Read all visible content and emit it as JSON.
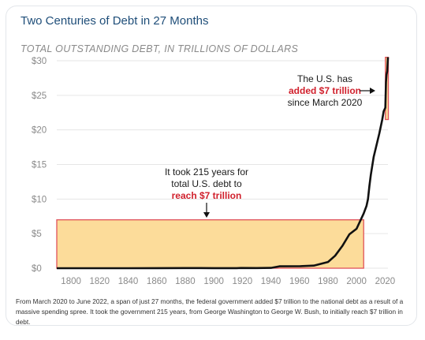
{
  "title": "Two Centuries of Debt in 27 Months",
  "subtitle": "TOTAL OUTSTANDING DEBT, IN TRILLIONS OF DOLLARS",
  "caption": "From March 2020 to June 2022, a span of just 27 months, the federal government added $7 trillion to the national debt as a result of a massive spending spree. It took the government 215 years, from George Washington to George W. Bush, to initially reach $7 trillion in debt.",
  "annotations": {
    "left": {
      "line1": "It took 215 years for",
      "line2": "total U.S. debt to",
      "line3": "reach $7 trillion"
    },
    "right": {
      "line1": "The U.S. has",
      "line2": "added $7 trillion",
      "line3": "since March 2020"
    }
  },
  "colors": {
    "highlight_fill": "#fcdc9a",
    "highlight_stroke": "#e0525a",
    "line": "#111111",
    "accent_red": "#d0202c",
    "title_blue": "#1f4e79"
  },
  "chart_data": {
    "type": "line",
    "title": "Two Centuries of Debt in 27 Months",
    "ylabel": "TOTAL OUTSTANDING DEBT, IN TRILLIONS OF DOLLARS",
    "xlabel": "",
    "xlim": [
      1790,
      2022
    ],
    "ylim": [
      0,
      30
    ],
    "x_ticks": [
      1800,
      1820,
      1840,
      1860,
      1880,
      1900,
      1920,
      1940,
      1960,
      1980,
      2000,
      2020
    ],
    "y_ticks": [
      0,
      5,
      10,
      15,
      20,
      25,
      30
    ],
    "y_tick_labels": [
      "$0",
      "$5",
      "$10",
      "$15",
      "$20",
      "$25",
      "$30"
    ],
    "grid": "horizontal",
    "series": [
      {
        "x": [
          1790,
          1800,
          1820,
          1840,
          1860,
          1880,
          1900,
          1916,
          1919,
          1930,
          1940,
          1946,
          1960,
          1970,
          1980,
          1985,
          1990,
          1995,
          2000,
          2005,
          2007,
          2008,
          2009,
          2010,
          2012,
          2014,
          2016,
          2018,
          2019,
          2020.2,
          2020.6,
          2021,
          2021.5,
          2022
        ],
        "y": [
          0,
          0,
          0,
          0,
          0.01,
          0.02,
          0.01,
          0.01,
          0.03,
          0.02,
          0.05,
          0.27,
          0.29,
          0.38,
          0.9,
          1.8,
          3.2,
          4.9,
          5.7,
          7.9,
          9.0,
          10.0,
          11.9,
          13.5,
          16.1,
          17.8,
          19.5,
          21.5,
          22.7,
          23.2,
          26.9,
          28.0,
          28.5,
          30.5
        ]
      }
    ],
    "highlights": [
      {
        "x": [
          1790,
          2005
        ],
        "y": [
          0,
          7
        ]
      },
      {
        "x": [
          2020.2,
          2022.3
        ],
        "y": [
          21.5,
          30.5
        ]
      }
    ]
  }
}
